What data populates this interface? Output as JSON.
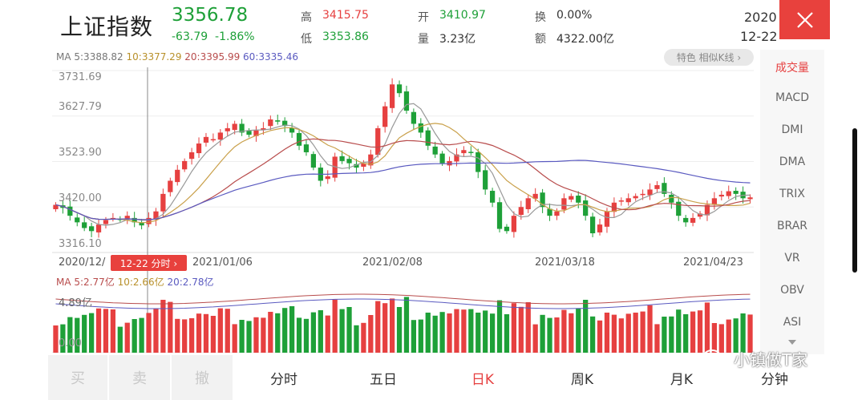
{
  "header": {
    "title": "上证指数",
    "price": "3356.78",
    "change": "-63.79",
    "change_pct": "-1.86%",
    "stats": [
      {
        "label": "高",
        "value": "3415.75",
        "tone": "red"
      },
      {
        "label": "开",
        "value": "3410.97",
        "tone": "green"
      },
      {
        "label": "换",
        "value": "0.00%",
        "tone": "dark"
      },
      {
        "label": "低",
        "value": "3353.86",
        "tone": "green"
      },
      {
        "label": "量",
        "value": "3.23亿",
        "tone": "dark"
      },
      {
        "label": "额",
        "value": "4322.00亿",
        "tone": "dark"
      }
    ],
    "date_year": "2020",
    "date_md": "12-22"
  },
  "ma": {
    "ma5": "MA 5:3388.82",
    "ma10": "10:3377.29",
    "ma20": "20:3395.99",
    "ma60": "60:3335.46"
  },
  "similar_button": "特色 相似K线 ›",
  "y_labels": [
    "3731.69",
    "3627.79",
    "3523.90",
    "3420.00",
    "3316.10"
  ],
  "x_labels": [
    "2020/12/",
    "2021/01/06",
    "2021/02/08",
    "2021/03/18",
    "2021/04/23"
  ],
  "cursor_tag": "12-22 分时 ›",
  "volume": {
    "ma5": "MA 5:2.77亿",
    "ma10": "10:2.66亿",
    "ma20": "20:2.78亿",
    "max_label": "4.89亿",
    "min_label": "0.00"
  },
  "indicators": [
    "成交量",
    "MACD",
    "DMI",
    "DMA",
    "TRIX",
    "BRAR",
    "VR",
    "OBV",
    "ASI"
  ],
  "bottom_bar": {
    "trade": [
      "买",
      "卖",
      "撤"
    ],
    "periods": [
      "分时",
      "五日",
      "日K",
      "周K",
      "月K",
      "分钟"
    ],
    "active": "日K"
  },
  "watermark": "小镇做T家",
  "colors": {
    "up": "#e64040",
    "down": "#1ea038",
    "accent": "#e8413d"
  },
  "chart_data": {
    "type": "candlestick",
    "y_range": [
      3316.1,
      3731.69
    ],
    "close_series": [
      3425,
      3418,
      3400,
      3385,
      3372,
      3365,
      3380,
      3390,
      3395,
      3392,
      3400,
      3385,
      3378,
      3395,
      3410,
      3450,
      3480,
      3505,
      3525,
      3545,
      3565,
      3580,
      3575,
      3590,
      3600,
      3610,
      3590,
      3585,
      3595,
      3600,
      3620,
      3615,
      3605,
      3590,
      3560,
      3545,
      3510,
      3480,
      3490,
      3535,
      3525,
      3520,
      3510,
      3520,
      3540,
      3600,
      3650,
      3700,
      3680,
      3640,
      3610,
      3590,
      3560,
      3540,
      3520,
      3525,
      3540,
      3550,
      3545,
      3500,
      3460,
      3430,
      3370,
      3365,
      3400,
      3420,
      3440,
      3450,
      3420,
      3400,
      3410,
      3440,
      3445,
      3430,
      3400,
      3360,
      3380,
      3410,
      3430,
      3435,
      3440,
      3445,
      3450,
      3460,
      3470,
      3450,
      3430,
      3400,
      3385,
      3395,
      3405,
      3425,
      3440,
      3448,
      3456,
      3450,
      3440,
      3442
    ]
  }
}
